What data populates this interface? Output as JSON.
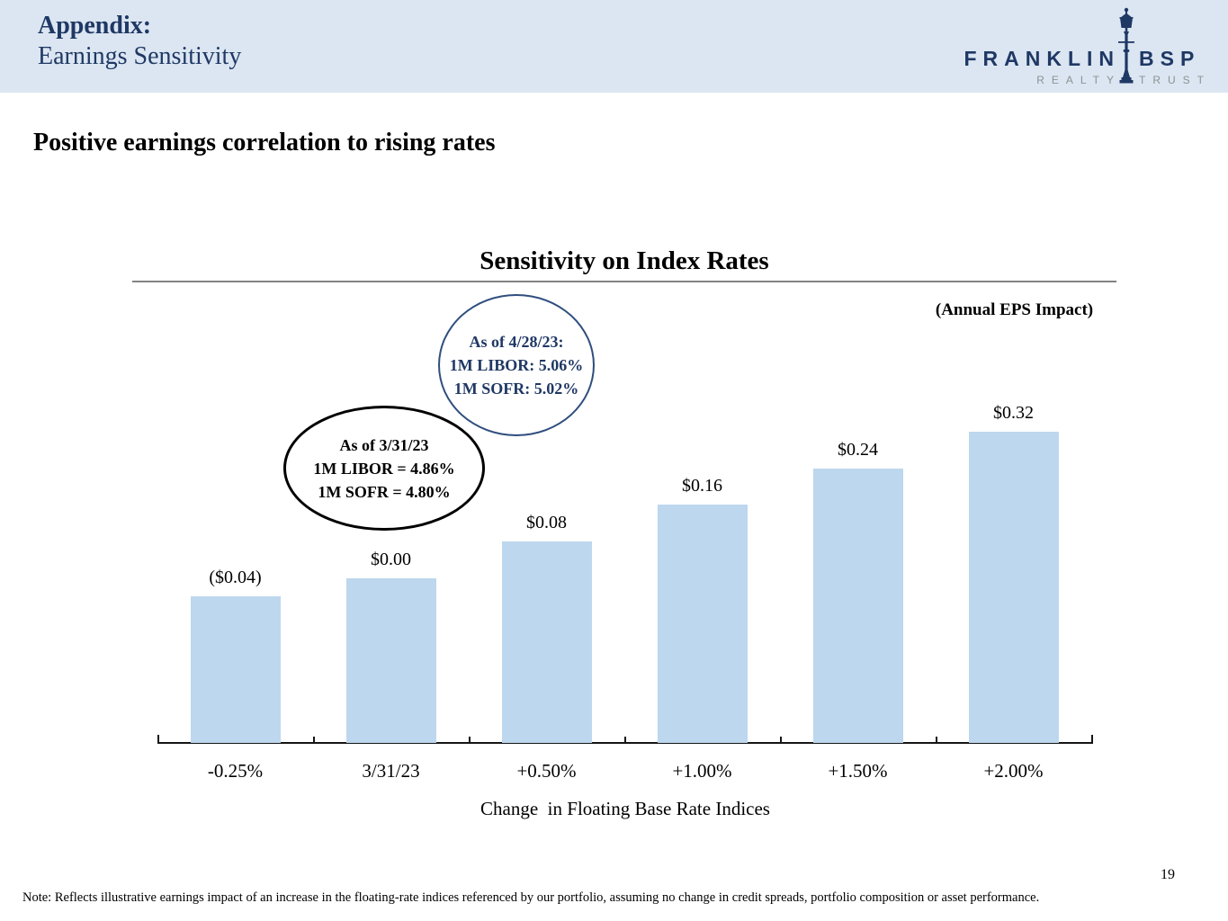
{
  "header": {
    "title_line1": "Appendix:",
    "title_line2": "Earnings Sensitivity"
  },
  "logo": {
    "word_left": "FRANKLIN",
    "word_right": "BSP",
    "sub_left": "REALTY",
    "sub_right": "TRUST",
    "lamppost_icon": "street-lamp",
    "navy": "#1f3864",
    "gray": "#8e9194"
  },
  "heading": "Positive earnings correlation to rising rates",
  "annotations": {
    "current": {
      "line1": "As of 4/28/23:",
      "line2": "1M LIBOR: 5.06%",
      "line3": "1M SOFR: 5.02%"
    },
    "prior": {
      "line1": "As of 3/31/23",
      "line2": "1M LIBOR = 4.86%",
      "line3": "1M SOFR = 4.80%"
    }
  },
  "chart_data": {
    "type": "bar",
    "title": "Sensitivity on Index Rates",
    "units_label": "(Annual EPS Impact)",
    "categories": [
      "-0.25%",
      "3/31/23",
      "+0.50%",
      "+1.00%",
      "+1.50%",
      "+2.00%"
    ],
    "values": [
      -0.04,
      0.0,
      0.08,
      0.16,
      0.24,
      0.32
    ],
    "value_labels": [
      "($0.04)",
      "$0.00",
      "$0.08",
      "$0.16",
      "$0.24",
      "$0.32"
    ],
    "xlabel": "Change  in Floating Base Rate Indices",
    "ylabel": "",
    "ylim": [
      -0.36,
      0.4
    ],
    "grid": false,
    "legend_position": "none",
    "bar_color": "#bdd7ee",
    "axis_color": "#151515"
  },
  "footer": {
    "page_number": "19",
    "note": "Note: Reflects illustrative earnings impact of an increase in the floating-rate indices referenced by our portfolio, assuming no change in credit spreads, portfolio composition or asset performance."
  },
  "colors": {
    "header_band": "#dbe6f2",
    "navy_text": "#1f3864",
    "title_rule_gray": "#828282"
  }
}
